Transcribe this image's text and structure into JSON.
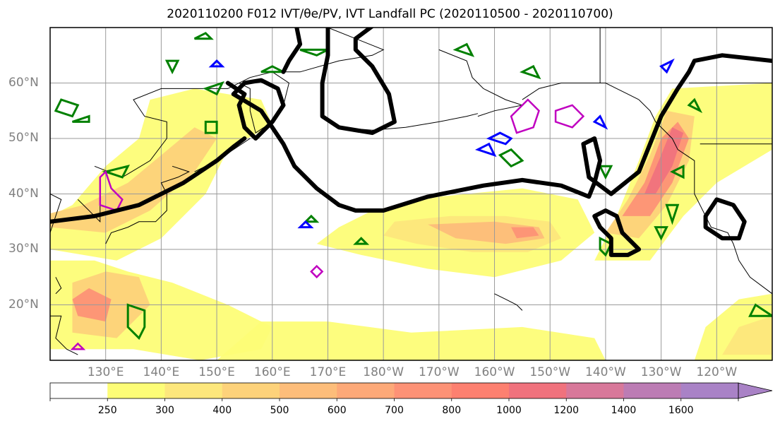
{
  "chart_data": {
    "type": "heatmap",
    "title": "2020110200 F012 IVT/θe/PV, IVT Landfall PC (2020110500 - 2020110700)",
    "projection": "PlateCarree (center 180°)",
    "lon_range": [
      120,
      250
    ],
    "lat_range": [
      10,
      70
    ],
    "grid": true,
    "lat_ticks": [
      {
        "value": 60,
        "label": "60°N"
      },
      {
        "value": 50,
        "label": "50°N"
      },
      {
        "value": 40,
        "label": "40°N"
      },
      {
        "value": 30,
        "label": "30°N"
      },
      {
        "value": 20,
        "label": "20°N"
      }
    ],
    "lon_ticks": [
      {
        "value": 130,
        "label": "130°E"
      },
      {
        "value": 140,
        "label": "140°E"
      },
      {
        "value": 150,
        "label": "150°E"
      },
      {
        "value": 160,
        "label": "160°E"
      },
      {
        "value": 170,
        "label": "170°E"
      },
      {
        "value": 180,
        "label": "180°W"
      },
      {
        "value": 190,
        "label": "170°W"
      },
      {
        "value": 200,
        "label": "160°W"
      },
      {
        "value": 210,
        "label": "150°W"
      },
      {
        "value": 220,
        "label": "140°W"
      },
      {
        "value": 230,
        "label": "130°W"
      },
      {
        "value": 240,
        "label": "120°W"
      }
    ],
    "colorbar": {
      "levels": [
        250,
        300,
        400,
        500,
        600,
        700,
        800,
        1000,
        1200,
        1400,
        1600
      ],
      "labels": [
        "250",
        "300",
        "400",
        "500",
        "600",
        "700",
        "800",
        "1000",
        "1200",
        "1400",
        "1600"
      ],
      "colors": [
        "#ffffff",
        "#fdfd77",
        "#fde77c",
        "#fdd27a",
        "#fdbd7a",
        "#fda978",
        "#fd9276",
        "#fd8070",
        "#f0727d",
        "#d8789a",
        "#bc7cb4",
        "#a982c6"
      ],
      "extend": "max"
    },
    "contours": [
      {
        "name": "IVT Landfall PC",
        "color": "#000000"
      },
      {
        "name": "θe",
        "color": "#008000"
      },
      {
        "name": "PV",
        "color": "#0000ff"
      },
      {
        "name": "PV",
        "color": "#c000c0"
      }
    ]
  }
}
